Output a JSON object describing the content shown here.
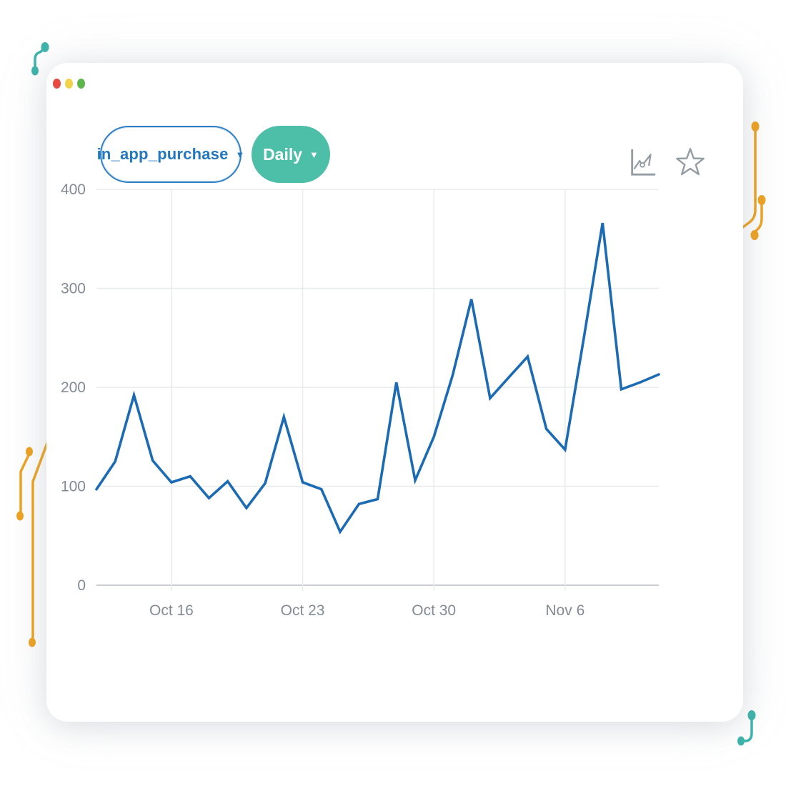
{
  "window": {
    "traffic_lights": [
      {
        "name": "close",
        "color": "#e64a43"
      },
      {
        "name": "minimize",
        "color": "#f2d24b"
      },
      {
        "name": "zoom",
        "color": "#5db54c"
      }
    ]
  },
  "toolbar": {
    "metric_selector": {
      "label": "in_app_purchase",
      "caret": "▼"
    },
    "frequency_selector": {
      "label": "Daily",
      "caret": "▼"
    },
    "icons": [
      "line-chart",
      "star"
    ]
  },
  "chart_data": {
    "type": "line",
    "title": "",
    "x": [
      "Oct 12",
      "Oct 13",
      "Oct 14",
      "Oct 15",
      "Oct 16",
      "Oct 17",
      "Oct 18",
      "Oct 19",
      "Oct 20",
      "Oct 21",
      "Oct 22",
      "Oct 23",
      "Oct 24",
      "Oct 25",
      "Oct 26",
      "Oct 27",
      "Oct 28",
      "Oct 29",
      "Oct 30",
      "Oct 31",
      "Nov 1",
      "Nov 2",
      "Nov 3",
      "Nov 4",
      "Nov 5",
      "Nov 6",
      "Nov 7",
      "Nov 8",
      "Nov 9",
      "Nov 10",
      "Nov 11"
    ],
    "series": [
      {
        "name": "in_app_purchase",
        "values": [
          97,
          125,
          192,
          126,
          104,
          110,
          88,
          105,
          78,
          103,
          170,
          104,
          97,
          54,
          82,
          87,
          205,
          106,
          150,
          212,
          289,
          189,
          210,
          231,
          158,
          137,
          250,
          366,
          198,
          205,
          213
        ]
      }
    ],
    "x_tick_labels": [
      "Oct 16",
      "Oct 23",
      "Oct 30",
      "Nov 6"
    ],
    "x_tick_indices": [
      4,
      11,
      18,
      25
    ],
    "y_ticks": [
      0,
      100,
      200,
      300,
      400
    ],
    "ylim": [
      0,
      400
    ],
    "grid": true,
    "legend": false
  },
  "colors": {
    "line": "#1a6bb4",
    "metric_pill_border": "#2e7fc4",
    "metric_pill_text": "#2478be",
    "frequency_pill_bg": "#4dbfa9",
    "icon_gray": "#949ca4",
    "axis_label": "#828b93",
    "gridline": "#e8eaec",
    "axis_line": "#c8ccd0",
    "decor_orange": "#efa31f",
    "decor_teal": "#3cb4ac"
  }
}
